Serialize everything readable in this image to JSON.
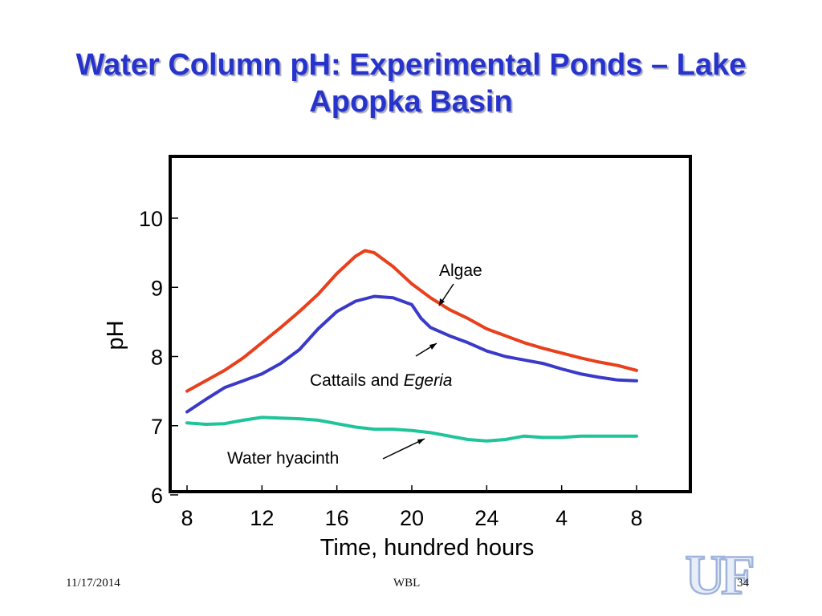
{
  "slide": {
    "title": "Water Column pH: Experimental Ponds – Lake Apopka Basin",
    "footer_date": "11/17/2014",
    "footer_center": "WBL",
    "page_number": "34",
    "logo_text": "UF"
  },
  "chart_data": {
    "type": "line",
    "title": "",
    "xlabel": "Time, hundred hours",
    "ylabel": "pH",
    "x_ticks": [
      "8",
      "12",
      "16",
      "20",
      "24",
      "4",
      "8"
    ],
    "x_values": [
      8,
      12,
      16,
      20,
      24,
      28,
      32
    ],
    "xlim": [
      7.5,
      36
    ],
    "ylim": [
      6,
      10.8
    ],
    "y_ticks": [
      6,
      7,
      8,
      9,
      10
    ],
    "grid": false,
    "legend": "none",
    "series": [
      {
        "name": "Algae",
        "color": "#e8401c",
        "x": [
          8,
          9,
          10,
          11,
          12,
          13,
          14,
          15,
          16,
          17,
          17.5,
          18,
          19,
          20,
          21,
          22,
          23,
          24,
          25,
          26,
          27,
          28,
          29,
          30,
          31,
          32
        ],
        "y": [
          7.5,
          7.65,
          7.8,
          7.98,
          8.2,
          8.42,
          8.65,
          8.9,
          9.2,
          9.45,
          9.53,
          9.5,
          9.3,
          9.05,
          8.85,
          8.68,
          8.55,
          8.4,
          8.3,
          8.2,
          8.12,
          8.05,
          7.98,
          7.92,
          7.87,
          7.8
        ]
      },
      {
        "name": "Cattails and Egeria",
        "color": "#3a3ac8",
        "x": [
          8,
          9,
          10,
          11,
          12,
          13,
          14,
          15,
          16,
          17,
          18,
          19,
          20,
          20.5,
          21,
          22,
          23,
          24,
          25,
          26,
          27,
          28,
          29,
          30,
          31,
          32
        ],
        "y": [
          7.2,
          7.38,
          7.55,
          7.65,
          7.75,
          7.9,
          8.1,
          8.4,
          8.65,
          8.8,
          8.87,
          8.85,
          8.75,
          8.55,
          8.42,
          8.3,
          8.2,
          8.08,
          8.0,
          7.95,
          7.9,
          7.82,
          7.75,
          7.7,
          7.66,
          7.65
        ]
      },
      {
        "name": "Water hyacinth",
        "color": "#1fc49a",
        "x": [
          8,
          9,
          10,
          11,
          12,
          13,
          14,
          15,
          16,
          17,
          18,
          19,
          20,
          21,
          22,
          23,
          24,
          25,
          26,
          27,
          28,
          29,
          30,
          31,
          32
        ],
        "y": [
          7.04,
          7.02,
          7.03,
          7.08,
          7.12,
          7.11,
          7.1,
          7.08,
          7.03,
          6.98,
          6.95,
          6.95,
          6.93,
          6.9,
          6.85,
          6.8,
          6.78,
          6.8,
          6.85,
          6.83,
          6.83,
          6.85,
          6.85,
          6.85,
          6.85
        ]
      }
    ],
    "annotations": [
      {
        "text_parts": [
          "Algae"
        ],
        "target_series": "Algae"
      },
      {
        "text_parts": [
          "Cattails and ",
          "Egeria"
        ],
        "target_series": "Cattails and Egeria"
      },
      {
        "text_parts": [
          "Water hyacinth"
        ],
        "target_series": "Water hyacinth"
      }
    ]
  }
}
